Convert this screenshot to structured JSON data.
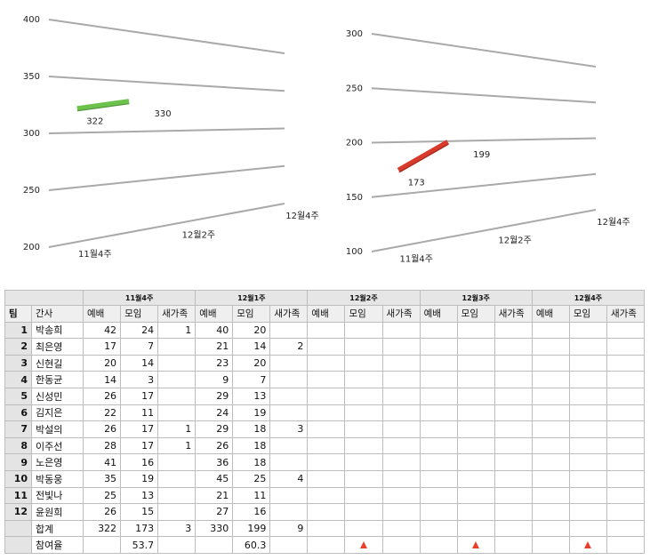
{
  "chart_data": [
    {
      "type": "line3d",
      "categories": [
        "11월4주",
        null,
        "12월2주",
        null,
        "12월4주"
      ],
      "series": [
        {
          "color": "#6cc24a",
          "values": [
            322,
            330,
            null,
            null,
            null
          ]
        }
      ],
      "ylim": [
        200,
        400
      ],
      "yticks": [
        200,
        250,
        300,
        350,
        400
      ],
      "grid": true
    },
    {
      "type": "line3d",
      "categories": [
        "11월4주",
        null,
        "12월2주",
        null,
        "12월4주"
      ],
      "series": [
        {
          "color": "#d93a2b",
          "values": [
            173,
            199,
            null,
            null,
            null
          ]
        }
      ],
      "ylim": [
        100,
        300
      ],
      "yticks": [
        100,
        150,
        200,
        250,
        300
      ],
      "grid": true
    }
  ],
  "table": {
    "week_headers": [
      "11월4주",
      "12월1주",
      "12월2주",
      "12월3주",
      "12월4주"
    ],
    "column_headers": [
      "팀",
      "간사",
      "예배",
      "모임",
      "새가족",
      "예배",
      "모임",
      "새가족",
      "예배",
      "모임",
      "새가족",
      "예배",
      "모임",
      "새가족",
      "예배",
      "모임",
      "새가족"
    ],
    "rows": [
      [
        1,
        "박송희",
        42,
        24,
        1,
        40,
        20,
        null
      ],
      [
        2,
        "최은영",
        17,
        7,
        null,
        21,
        14,
        2
      ],
      [
        3,
        "신현길",
        20,
        14,
        null,
        23,
        20,
        null
      ],
      [
        4,
        "한동균",
        14,
        3,
        null,
        9,
        7,
        null
      ],
      [
        5,
        "신성민",
        26,
        17,
        null,
        29,
        13,
        null
      ],
      [
        6,
        "김지은",
        22,
        11,
        null,
        24,
        19,
        null
      ],
      [
        7,
        "박설의",
        26,
        17,
        1,
        29,
        18,
        3
      ],
      [
        8,
        "이주선",
        28,
        17,
        1,
        26,
        18,
        null
      ],
      [
        9,
        "노은영",
        41,
        16,
        null,
        36,
        18,
        null
      ],
      [
        10,
        "박동웅",
        35,
        19,
        null,
        45,
        25,
        4
      ],
      [
        11,
        "전빛나",
        25,
        13,
        null,
        21,
        11,
        null
      ],
      [
        12,
        "윤원희",
        26,
        15,
        null,
        27,
        16,
        null
      ],
      [
        null,
        "합계",
        322,
        173,
        3,
        330,
        199,
        9
      ],
      [
        null,
        "참여율",
        null,
        53.7,
        null,
        null,
        60.3,
        null
      ]
    ]
  }
}
